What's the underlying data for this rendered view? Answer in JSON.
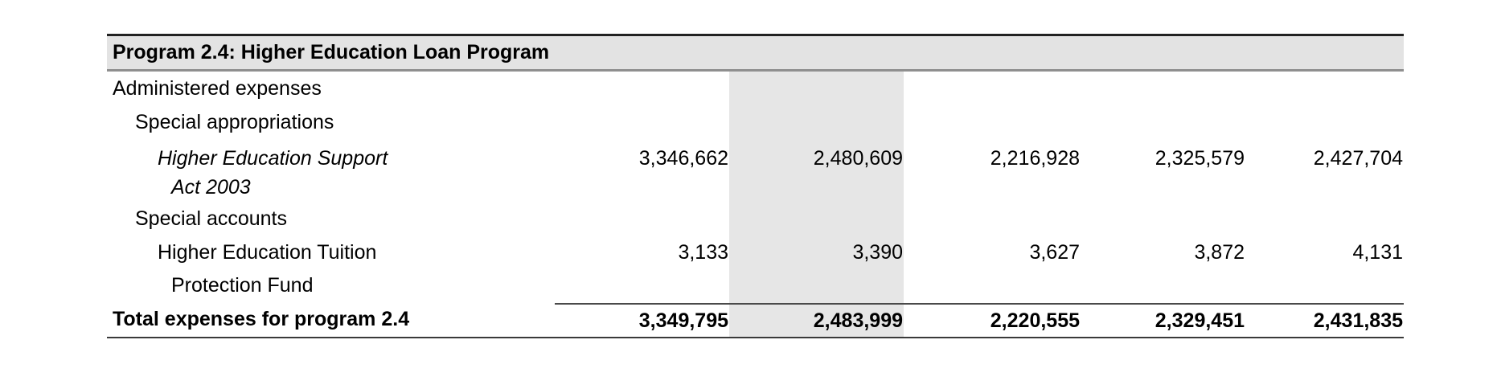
{
  "table": {
    "title": "Program 2.4: Higher Education Loan Program",
    "num_value_columns": 5,
    "rows": {
      "administered_expenses": {
        "label": "Administered expenses"
      },
      "special_appropriations": {
        "label": "Special appropriations"
      },
      "hesa": {
        "label_line1": "Higher Education Support",
        "label_line2": "Act 2003",
        "values": [
          "3,346,662",
          "2,480,609",
          "2,216,928",
          "2,325,579",
          "2,427,704"
        ]
      },
      "special_accounts": {
        "label": "Special accounts"
      },
      "tuition_protection_fund": {
        "label_line1": "Higher Education Tuition",
        "label_line2": "Protection Fund",
        "values": [
          "3,133",
          "3,390",
          "3,627",
          "3,872",
          "4,131"
        ]
      },
      "total": {
        "label": "Total expenses for program 2.4",
        "values": [
          "3,349,795",
          "2,483,999",
          "2,220,555",
          "2,329,451",
          "2,431,835"
        ]
      }
    },
    "colors": {
      "header_bg": "#e3e3e3",
      "highlight_column_bg": "#e6e6e6",
      "top_rule": "#222222",
      "header_rule": "#8f8f8f",
      "total_rule": "#4a4a4a",
      "bottom_rule": "#3a3a3a"
    }
  }
}
